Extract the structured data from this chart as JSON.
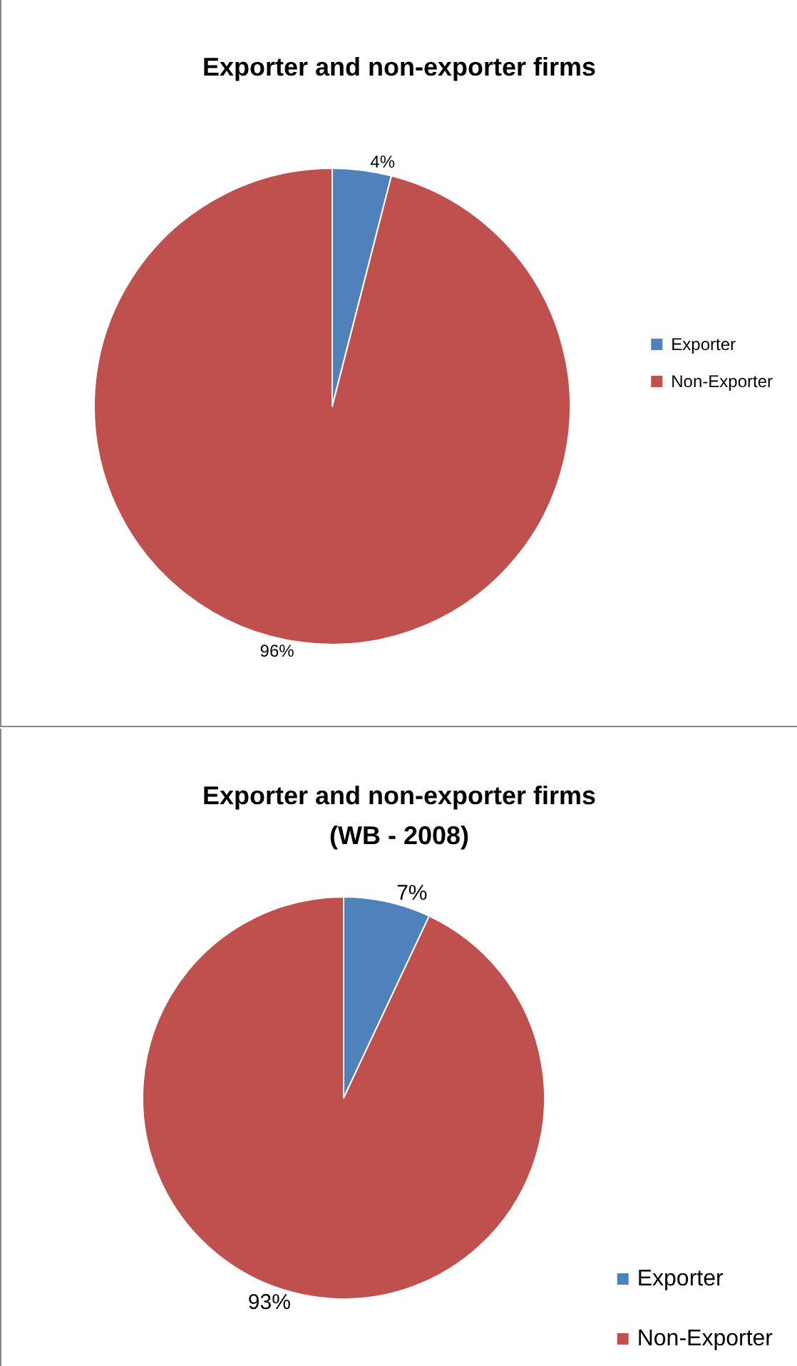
{
  "chart_data": [
    {
      "type": "pie",
      "title": "Exporter and non-exporter firms",
      "categories": [
        "Exporter",
        "Non-Exporter"
      ],
      "values": [
        4,
        96
      ],
      "colors": [
        "#4f81bd",
        "#c0504d"
      ],
      "value_labels": [
        "4%",
        "96%"
      ],
      "legend": "right"
    },
    {
      "type": "pie",
      "title": "Exporter and non-exporter firms\n(WB - 2008)",
      "categories": [
        "Exporter",
        "Non-Exporter"
      ],
      "values": [
        7,
        93
      ],
      "colors": [
        "#4f81bd",
        "#c0504d"
      ],
      "value_labels": [
        "7%",
        "93%"
      ],
      "legend": "bottom right"
    }
  ]
}
